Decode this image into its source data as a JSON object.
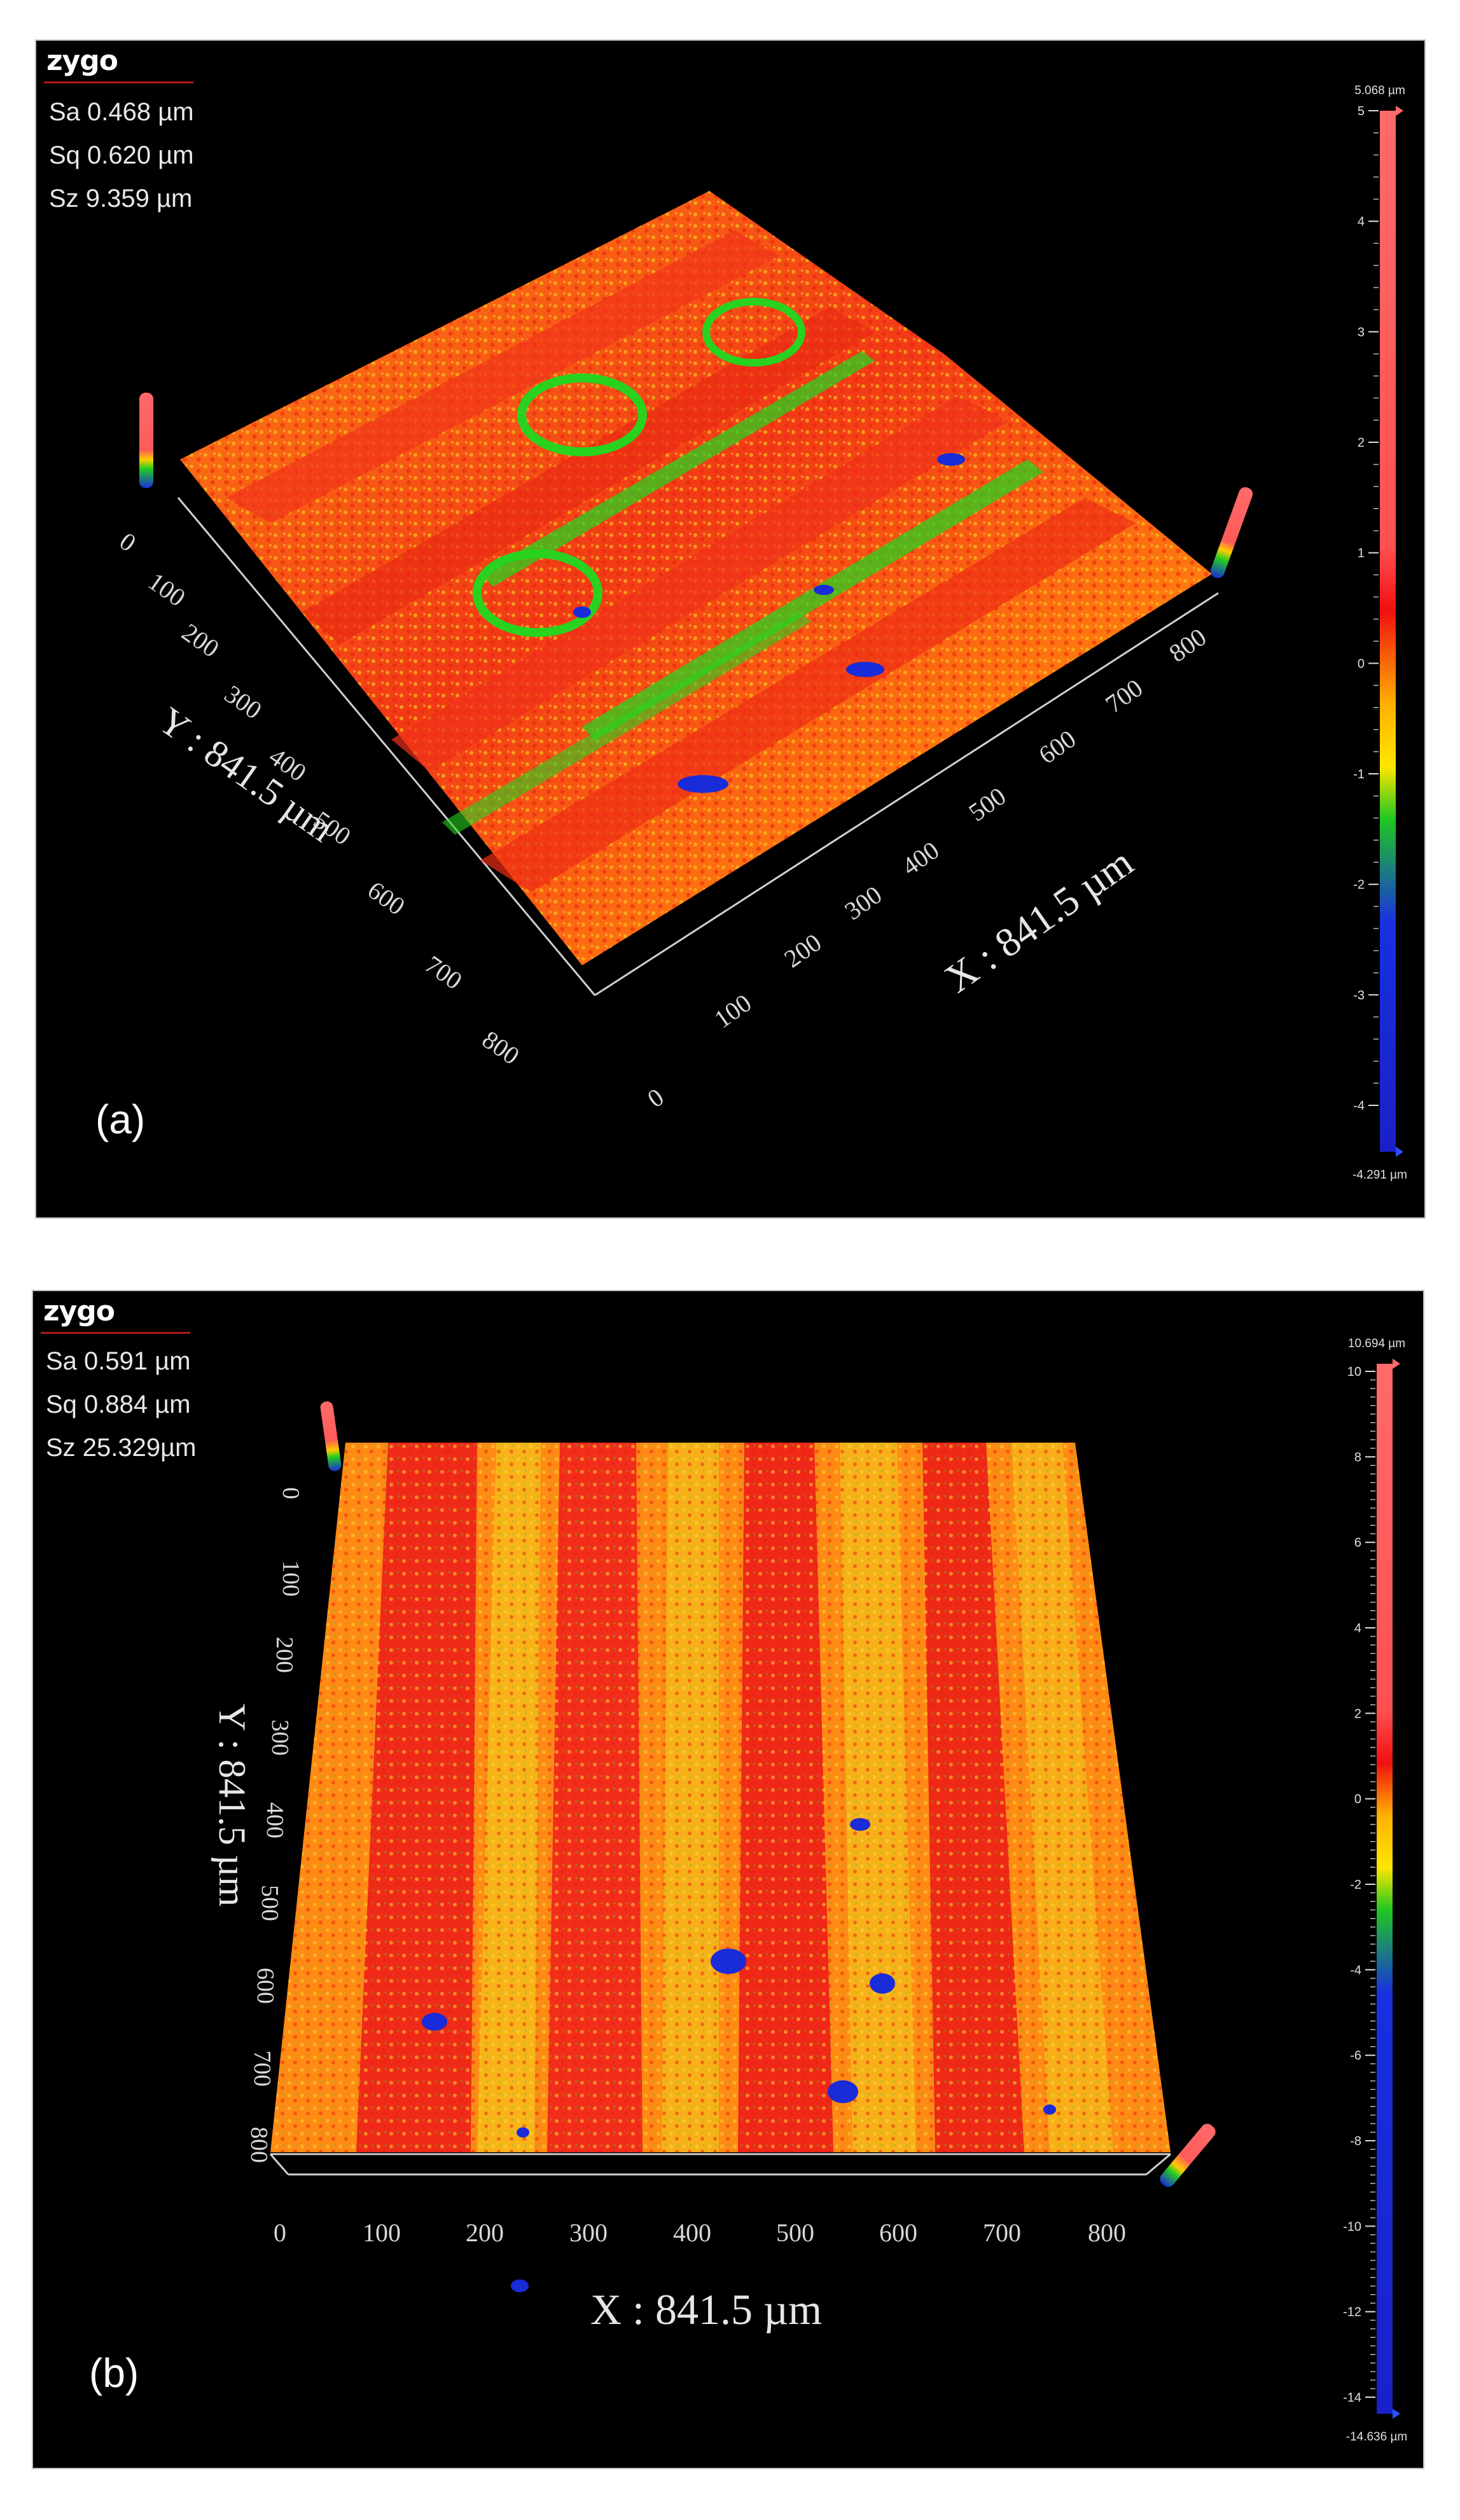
{
  "panels": [
    {
      "id": "a",
      "logo": "zygo",
      "label": "(a)",
      "stats": {
        "sa": "Sa 0.468 µm",
        "sq": "Sq 0.620 µm",
        "sz": "Sz 9.359 µm"
      },
      "x_axis": {
        "title": "X : 841.5 µm",
        "ticks": [
          "0",
          "100",
          "200",
          "300",
          "400",
          "500",
          "600",
          "700",
          "800"
        ]
      },
      "y_axis": {
        "title": "Y : 841.5 µm",
        "ticks": [
          "0",
          "100",
          "200",
          "300",
          "400",
          "500",
          "600",
          "700",
          "800"
        ]
      },
      "colorbar": {
        "max_label": "5.068 µm",
        "min_label": "-4.291 µm",
        "ticks": [
          "5",
          "4",
          "3",
          "2",
          "1",
          "0",
          "-1",
          "-2",
          "-3",
          "-4"
        ]
      }
    },
    {
      "id": "b",
      "logo": "zygo",
      "label": "(b)",
      "stats": {
        "sa": "Sa 0.591  µm",
        "sq": "Sq 0.884  µm",
        "sz": "Sz 25.329µm"
      },
      "x_axis": {
        "title": "X : 841.5 µm",
        "ticks": [
          "0",
          "100",
          "200",
          "300",
          "400",
          "500",
          "600",
          "700",
          "800"
        ]
      },
      "y_axis": {
        "title": "Y : 841.5 µm",
        "ticks": [
          "0",
          "100",
          "200",
          "300",
          "400",
          "500",
          "600",
          "700",
          "800"
        ]
      },
      "colorbar": {
        "max_label": "10.694 µm",
        "min_label": "-14.636 µm",
        "ticks": [
          "10",
          "8",
          "6",
          "4",
          "2",
          "0",
          "-2",
          "-4",
          "-6",
          "-8",
          "-10",
          "-12",
          "-14"
        ]
      }
    }
  ],
  "colors": {
    "background": "#000000",
    "surface_red": "#f22a17",
    "surface_orange": "#ff7a10",
    "surface_yellow": "#f4c21a",
    "valley_green": "#28d21f",
    "pit_blue": "#1a2bd8",
    "peak_pink": "#ff6a6a"
  }
}
